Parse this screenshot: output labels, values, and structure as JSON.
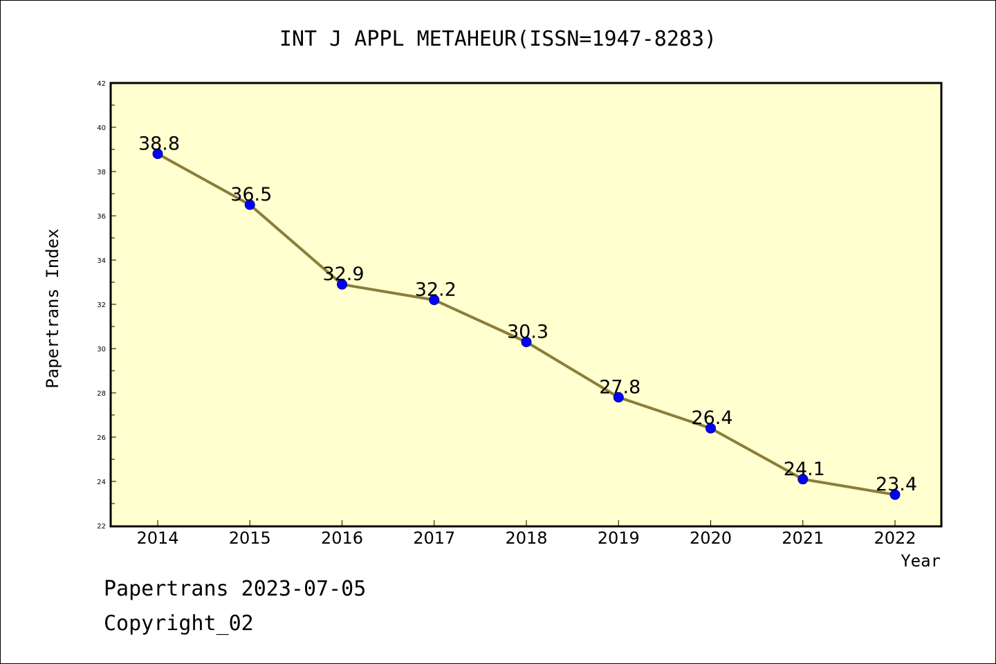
{
  "chart_data": {
    "type": "line",
    "title": "INT J APPL METAHEUR(ISSN=1947-8283)",
    "xlabel": "Year",
    "ylabel": "Papertrans Index",
    "categories": [
      "2014",
      "2015",
      "2016",
      "2017",
      "2018",
      "2019",
      "2020",
      "2021",
      "2022"
    ],
    "values": [
      38.8,
      36.5,
      32.9,
      32.2,
      30.3,
      27.8,
      26.4,
      24.1,
      23.4
    ],
    "data_labels": [
      "38.8",
      "36.5",
      "32.9",
      "32.2",
      "30.3",
      "27.8",
      "26.4",
      "24.1",
      "23.4"
    ],
    "ylim": [
      22,
      42
    ],
    "yticks": [
      "22",
      "24",
      "26",
      "28",
      "30",
      "32",
      "34",
      "36",
      "38",
      "40",
      "42"
    ],
    "grid": false,
    "colors": {
      "plot_background": "#ffffd0",
      "line": "#8b7d3a",
      "marker": "#0000ff"
    }
  },
  "footer": {
    "line1": "Papertrans 2023-07-05",
    "line2": "Copyright_02"
  }
}
